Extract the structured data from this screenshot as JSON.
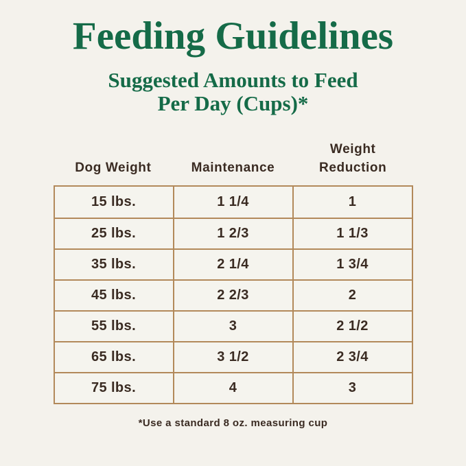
{
  "title": "Feeding Guidelines",
  "subtitle": {
    "line1": "Suggested Amounts to Feed",
    "line2": "Per Day (Cups)*"
  },
  "table": {
    "headers": [
      "Dog Weight",
      "Maintenance",
      "Weight\nReduction"
    ],
    "rows": [
      {
        "weight": "15 lbs.",
        "maintenance": "1 1/4",
        "reduction": "1"
      },
      {
        "weight": "25 lbs.",
        "maintenance": "1 2/3",
        "reduction": "1 1/3"
      },
      {
        "weight": "35 lbs.",
        "maintenance": "2 1/4",
        "reduction": "1 3/4"
      },
      {
        "weight": "45 lbs.",
        "maintenance": "2 2/3",
        "reduction": "2"
      },
      {
        "weight": "55 lbs.",
        "maintenance": "3",
        "reduction": "2 1/2"
      },
      {
        "weight": "65 lbs.",
        "maintenance": "3 1/2",
        "reduction": "2 3/4"
      },
      {
        "weight": "75 lbs.",
        "maintenance": "4",
        "reduction": "3"
      }
    ]
  },
  "footnote": "*Use a standard 8 oz. measuring cup",
  "colors": {
    "title_green": "#156b48",
    "table_border_tan": "#b2895a",
    "text_brown": "#3a2b22",
    "background_cream": "#f4f2ec"
  },
  "chart_data": {
    "type": "table",
    "title": "Feeding Guidelines",
    "subtitle": "Suggested Amounts to Feed Per Day (Cups)*",
    "columns": [
      "Dog Weight",
      "Maintenance",
      "Weight Reduction"
    ],
    "rows": [
      [
        "15 lbs.",
        "1 1/4",
        "1"
      ],
      [
        "25 lbs.",
        "1 2/3",
        "1 1/3"
      ],
      [
        "35 lbs.",
        "2 1/4",
        "1 3/4"
      ],
      [
        "45 lbs.",
        "2 2/3",
        "2"
      ],
      [
        "55 lbs.",
        "3",
        "2 1/2"
      ],
      [
        "65 lbs.",
        "3 1/2",
        "2 3/4"
      ],
      [
        "75 lbs.",
        "4",
        "3"
      ]
    ],
    "footnote": "*Use a standard 8 oz. measuring cup",
    "units": "cups per day"
  }
}
